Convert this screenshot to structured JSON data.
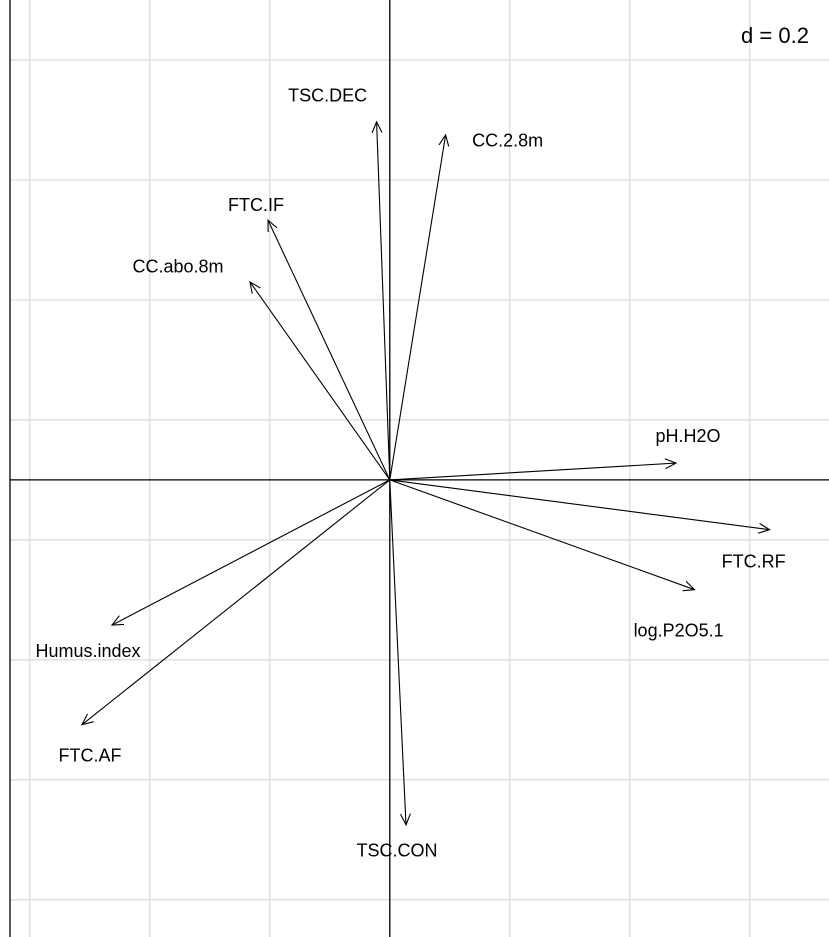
{
  "chart_data": {
    "type": "arrow",
    "labels": [
      "TSC.DEC",
      "CC.2.8m",
      "FTC.IF",
      "CC.abo.8m",
      "pH.H2O",
      "FTC.RF",
      "log.P2O5.1",
      "Humus.index",
      "FTC.AF",
      "TSC.CON"
    ],
    "x": [
      -0.022,
      0.093,
      -0.203,
      -0.233,
      0.477,
      0.633,
      0.508,
      -0.463,
      -0.513,
      0.027
    ],
    "y": [
      0.597,
      0.575,
      0.433,
      0.33,
      0.028,
      -0.083,
      -0.183,
      -0.242,
      -0.408,
      -0.575
    ],
    "xlim": [
      -0.633,
      0.732
    ],
    "ylim": [
      -0.762,
      0.8
    ],
    "xticks": [
      -0.6,
      -0.4,
      -0.2,
      0,
      0.2,
      0.4,
      0.6
    ],
    "yticks": [
      -0.7,
      -0.5,
      -0.3,
      -0.1,
      0.1,
      0.3,
      0.5,
      0.7
    ],
    "grid": true,
    "grid_label": "d = 0.2"
  }
}
